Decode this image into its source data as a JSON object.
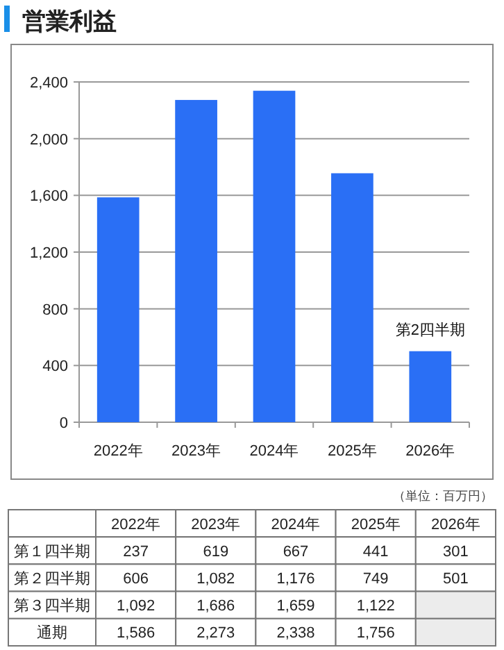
{
  "chart_data": [
    {
      "type": "bar",
      "title": "営業利益",
      "categories": [
        "2022年",
        "2023年",
        "2024年",
        "2025年",
        "2026年"
      ],
      "values": [
        1586,
        2273,
        2338,
        1756,
        501
      ],
      "color": "#2a6ff5",
      "ylim": [
        0,
        2400
      ],
      "yticks": [
        0,
        400,
        800,
        {
          "value": 1200,
          "label": "1,200"
        },
        {
          "value": 1600,
          "label": "1,600"
        },
        {
          "value": 2000,
          "label": "2,000"
        },
        {
          "value": 2400,
          "label": "2,400"
        }
      ],
      "grid": "y",
      "annotations": [
        {
          "text": "第2四半期",
          "x": "2026年",
          "y": 501
        }
      ]
    },
    {
      "type": "heatmap",
      "annotations": [
        "（単位：百万円）"
      ],
      "categories": [
        "2022年",
        "2023年",
        "2024年",
        "2025年",
        "2026年"
      ],
      "y_categories": [
        "第１四半期",
        "第２四半期",
        "第３四半期",
        "通期"
      ],
      "cells": [
        [
          237,
          619,
          667,
          441,
          301
        ],
        [
          606,
          1082,
          1176,
          749,
          501
        ],
        [
          1092,
          1686,
          1659,
          1122,
          null
        ],
        [
          1586,
          2273,
          2338,
          1756,
          null
        ]
      ],
      "cell_labels": [
        [
          "237",
          "619",
          "667",
          "441",
          "301"
        ],
        [
          "606",
          "1,082",
          "1,176",
          "749",
          "501"
        ],
        [
          "1,092",
          "1,686",
          "1,659",
          "1,122",
          null
        ],
        [
          "1,586",
          "2,273",
          "2,338",
          "1,756",
          null
        ]
      ]
    }
  ]
}
